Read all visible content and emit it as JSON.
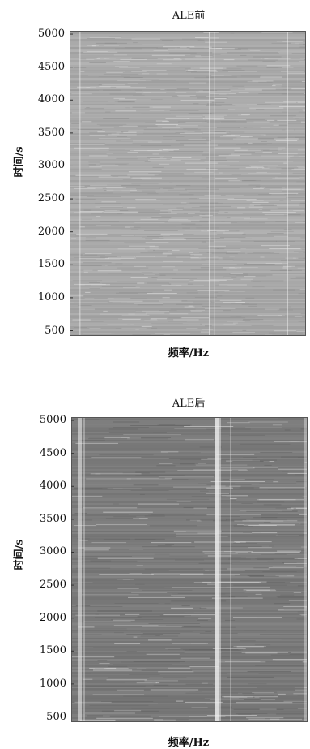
{
  "chart_data": [
    {
      "type": "heatmap",
      "title": "ALE前",
      "xlabel": "频率/Hz",
      "ylabel": "时间/s",
      "yticks": [
        5000,
        4500,
        4000,
        3500,
        3000,
        2500,
        2000,
        1500,
        1000,
        500
      ],
      "ylim": [
        420,
        5050
      ],
      "colors": {
        "background": "#a9a9a9",
        "light": "#e2e2e2",
        "dark": "#8c8c8c"
      }
    },
    {
      "type": "heatmap",
      "title": "ALE后",
      "xlabel": "频率/Hz",
      "ylabel": "时间/s",
      "yticks": [
        5000,
        4500,
        4000,
        3500,
        3000,
        2500,
        2000,
        1500,
        1000,
        500
      ],
      "ylim": [
        420,
        5050
      ],
      "colors": {
        "background": "#7b7b7b",
        "light": "#e0e0e0",
        "dark": "#5e5e5e"
      }
    }
  ]
}
